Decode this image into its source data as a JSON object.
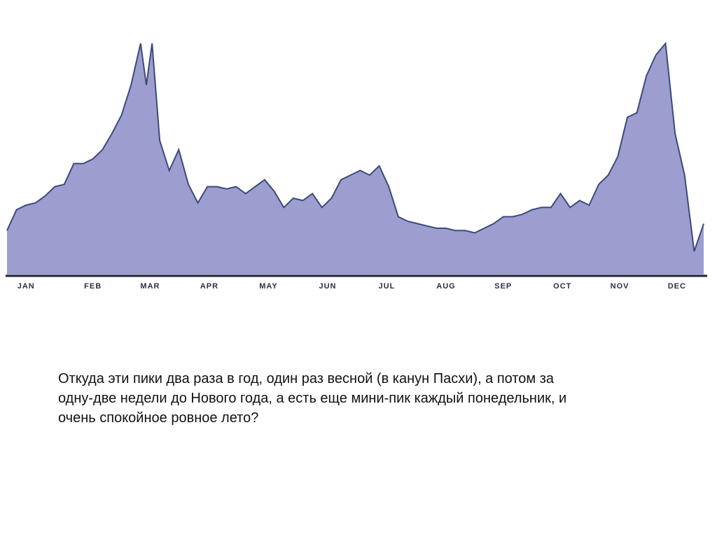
{
  "chart_data": {
    "type": "area",
    "x": [
      0,
      5,
      10,
      15,
      20,
      25,
      30,
      35,
      40,
      45,
      50,
      55,
      60,
      65,
      70,
      73,
      76,
      80,
      85,
      90,
      95,
      100,
      105,
      110,
      115,
      120,
      125,
      130,
      135,
      140,
      145,
      150,
      155,
      160,
      165,
      170,
      175,
      180,
      185,
      190,
      195,
      200,
      205,
      210,
      215,
      220,
      225,
      230,
      235,
      240,
      245,
      250,
      255,
      260,
      265,
      270,
      275,
      280,
      285,
      290,
      295,
      300,
      305,
      310,
      315,
      320,
      325,
      330,
      335,
      340,
      345,
      350,
      355,
      360,
      365
    ],
    "values": [
      19,
      28,
      30,
      31,
      34,
      38,
      39,
      48,
      48,
      50,
      54,
      61,
      69,
      82,
      100,
      82,
      100,
      58,
      45,
      54,
      39,
      31,
      38,
      38,
      37,
      38,
      35,
      38,
      41,
      36,
      29,
      33,
      32,
      35,
      29,
      33,
      41,
      43,
      45,
      43,
      47,
      38,
      25,
      23,
      22,
      21,
      20,
      20,
      19,
      19,
      18,
      20,
      22,
      25,
      25,
      26,
      28,
      29,
      29,
      35,
      29,
      32,
      30,
      39,
      43,
      51,
      68,
      70,
      86,
      95,
      100,
      61,
      43,
      10,
      22
    ],
    "xlim": [
      0,
      365
    ],
    "ylim": [
      0,
      100
    ],
    "xticks": [
      {
        "value": 10,
        "label": "JAN"
      },
      {
        "value": 45,
        "label": "FEB"
      },
      {
        "value": 75,
        "label": "MAR"
      },
      {
        "value": 106,
        "label": "APR"
      },
      {
        "value": 137,
        "label": "MAY"
      },
      {
        "value": 168,
        "label": "JUN"
      },
      {
        "value": 199,
        "label": "JUL"
      },
      {
        "value": 230,
        "label": "AUG"
      },
      {
        "value": 260,
        "label": "SEP"
      },
      {
        "value": 291,
        "label": "OCT"
      },
      {
        "value": 321,
        "label": "NOV"
      },
      {
        "value": 351,
        "label": "DEC"
      }
    ],
    "color": "#9d9dd0",
    "line_color": "#3b4a7c"
  },
  "paragraph": [
    "Откуда эти пики два раза в год, один раз весной (в канун Пасхи), а потом за",
    "одну-две недели до Нового года, а есть еще мини-пик каждый понедельник, и",
    "очень спокойное ровное лето?"
  ]
}
